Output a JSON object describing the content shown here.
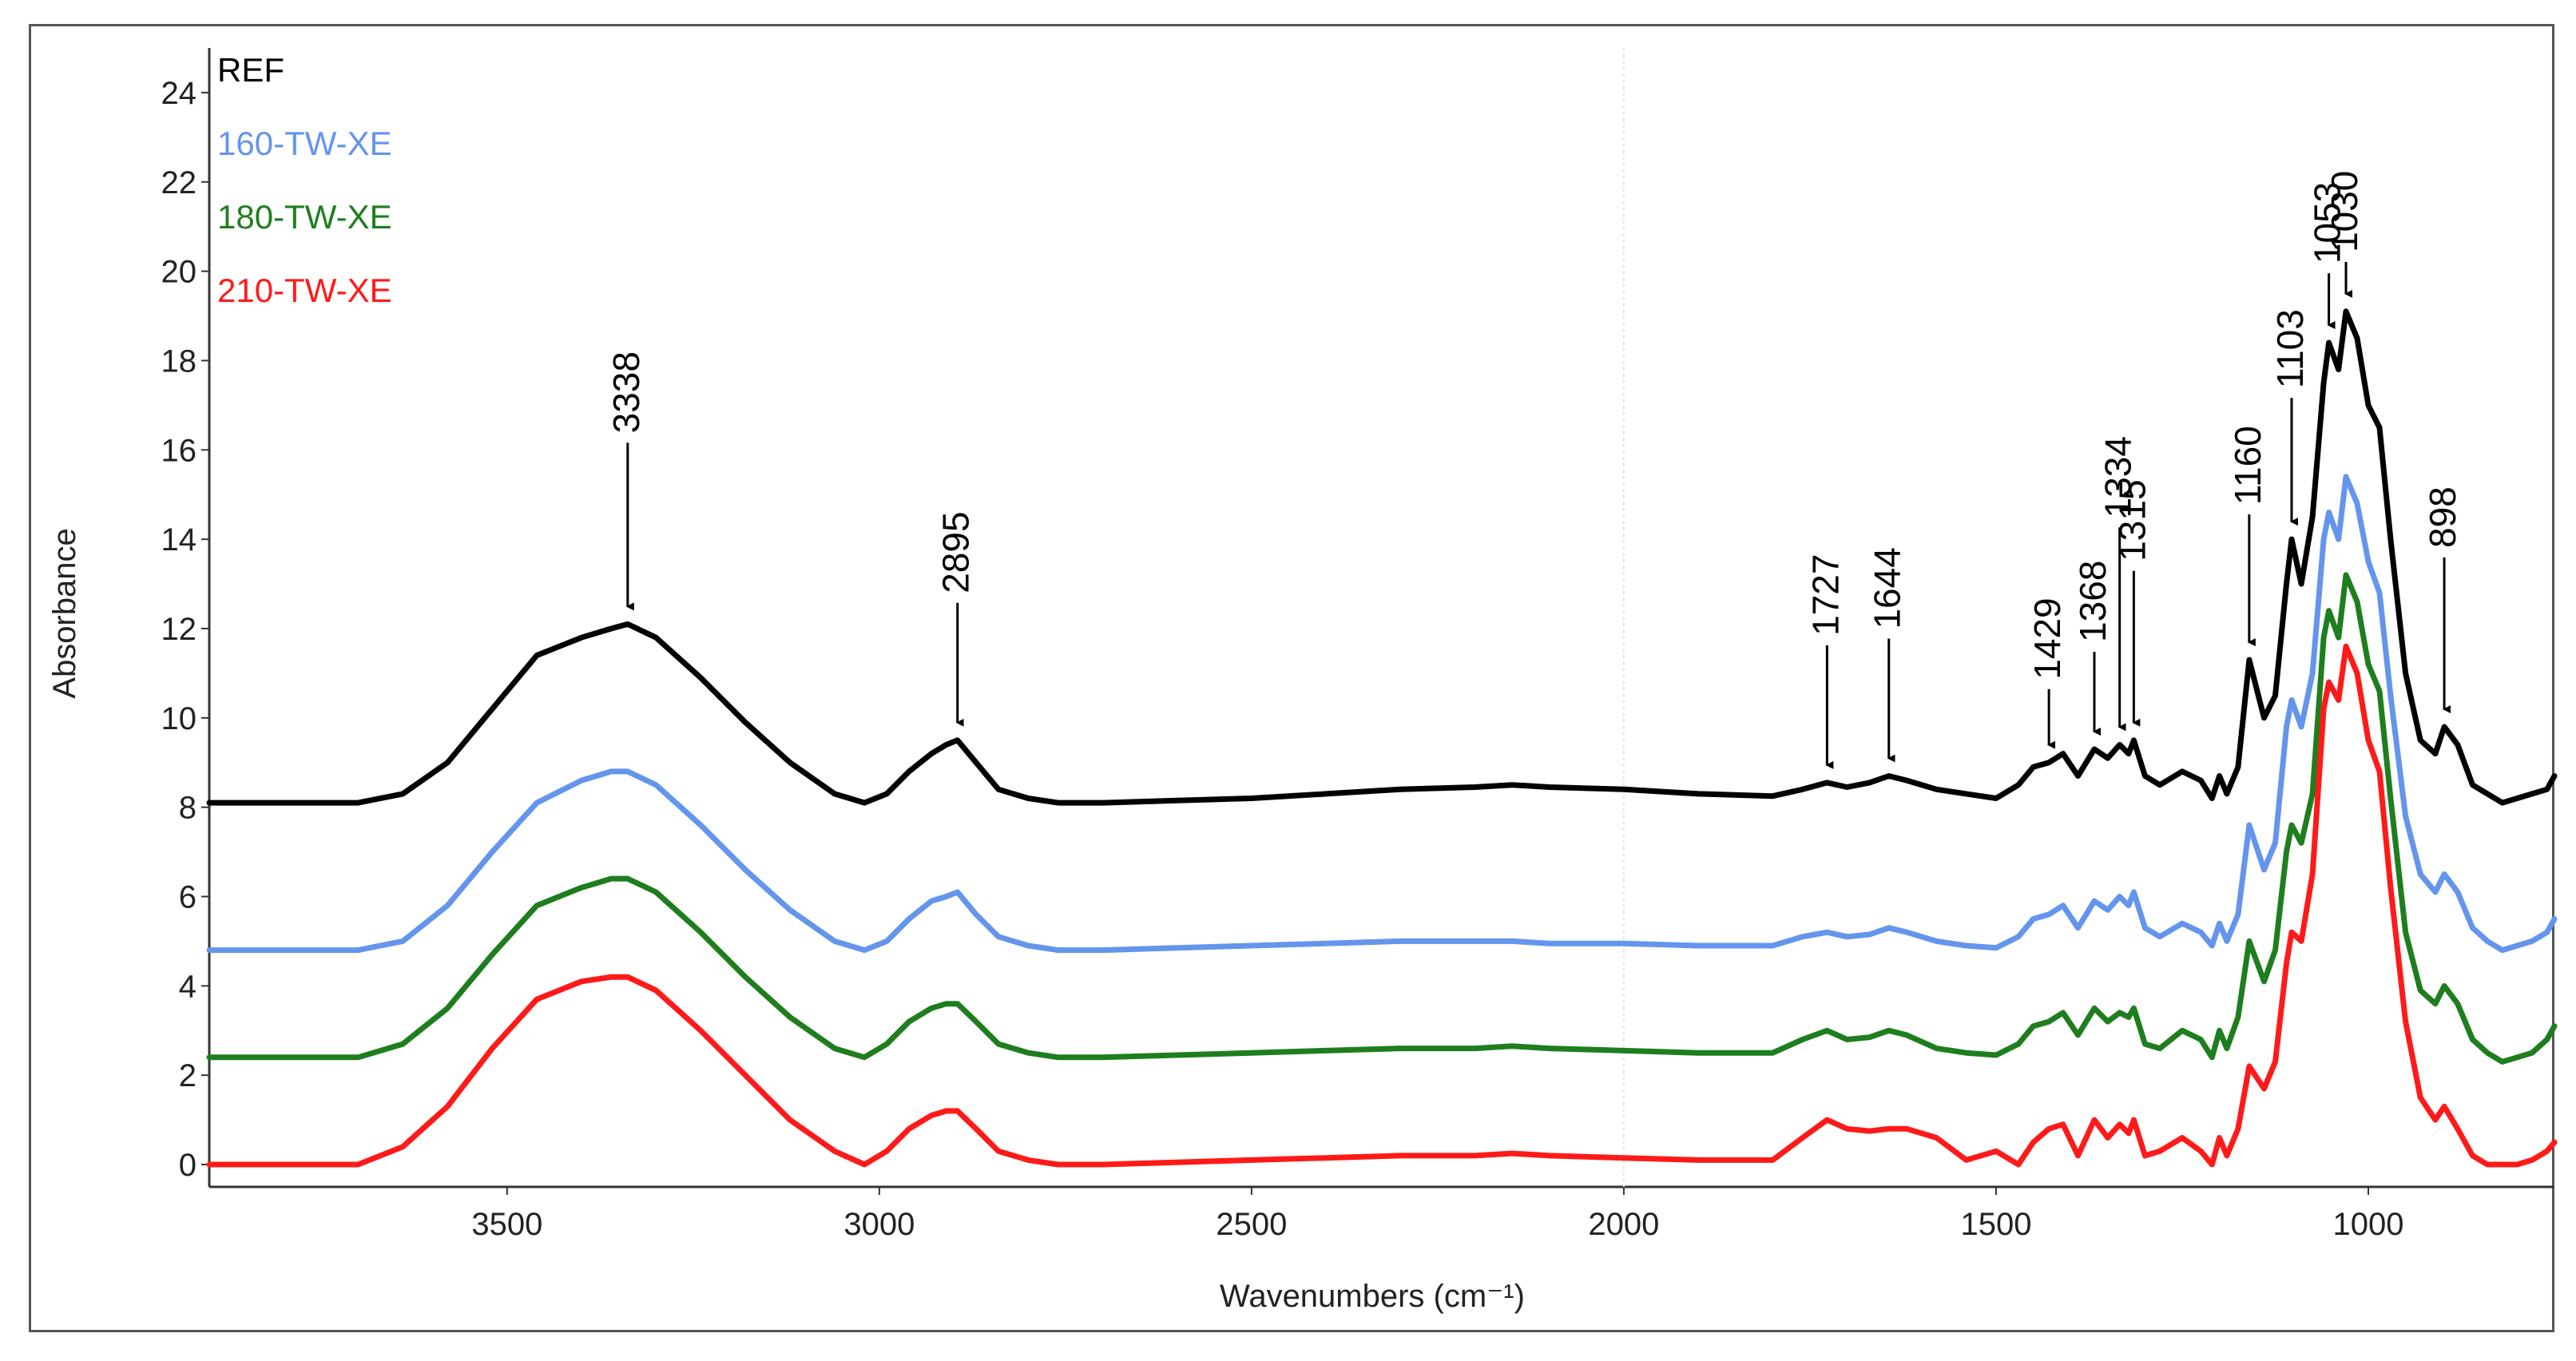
{
  "chart_data": {
    "type": "line",
    "title": "",
    "xlabel": "Wavenumbers (cm⁻¹)",
    "ylabel": "Absorbance",
    "xlim": [
      3900,
      750
    ],
    "ylim": [
      -0.5,
      25
    ],
    "x_reversed": true,
    "x_ticks": [
      3500,
      3000,
      2500,
      2000,
      1500,
      1000
    ],
    "y_ticks": [
      0,
      2,
      4,
      6,
      8,
      10,
      12,
      14,
      16,
      18,
      20,
      22,
      24
    ],
    "x_tick_labels": [
      "3500",
      "3000",
      "2500",
      "2000",
      "1500",
      "1000"
    ],
    "y_tick_labels": [
      "0",
      "2",
      "4",
      "6",
      "8",
      "10",
      "12",
      "14",
      "16",
      "18",
      "20",
      "22",
      "24"
    ],
    "grid": false,
    "legend_position": "top-left",
    "legend": [
      "REF",
      "160-TW-XE",
      "180-TW-XE",
      "210-TW-XE"
    ],
    "series": [
      {
        "name": "REF",
        "color": "#000000",
        "x": [
          3900,
          3700,
          3640,
          3580,
          3520,
          3460,
          3400,
          3360,
          3338,
          3300,
          3240,
          3180,
          3120,
          3060,
          3020,
          2990,
          2960,
          2930,
          2910,
          2895,
          2870,
          2840,
          2800,
          2760,
          2700,
          2600,
          2500,
          2400,
          2300,
          2200,
          2150,
          2100,
          2000,
          1900,
          1800,
          1760,
          1727,
          1700,
          1670,
          1644,
          1620,
          1580,
          1540,
          1500,
          1470,
          1450,
          1429,
          1410,
          1390,
          1368,
          1350,
          1334,
          1322,
          1315,
          1300,
          1280,
          1250,
          1225,
          1210,
          1200,
          1190,
          1175,
          1160,
          1140,
          1125,
          1110,
          1103,
          1090,
          1075,
          1060,
          1053,
          1040,
          1030,
          1015,
          1000,
          985,
          970,
          950,
          930,
          910,
          898,
          880,
          860,
          840,
          820,
          800,
          780,
          760,
          750
        ],
        "y": [
          8.1,
          8.1,
          8.3,
          9.0,
          10.2,
          11.4,
          11.8,
          12.0,
          12.1,
          11.8,
          10.9,
          9.9,
          9.0,
          8.3,
          8.1,
          8.3,
          8.8,
          9.2,
          9.4,
          9.5,
          9.0,
          8.4,
          8.2,
          8.1,
          8.1,
          8.15,
          8.2,
          8.3,
          8.4,
          8.45,
          8.5,
          8.45,
          8.4,
          8.3,
          8.25,
          8.4,
          8.55,
          8.45,
          8.55,
          8.7,
          8.6,
          8.4,
          8.3,
          8.2,
          8.5,
          8.9,
          9.0,
          9.2,
          8.7,
          9.3,
          9.1,
          9.4,
          9.2,
          9.5,
          8.7,
          8.5,
          8.8,
          8.6,
          8.2,
          8.7,
          8.3,
          8.9,
          11.3,
          10.0,
          10.5,
          13.0,
          14.0,
          13.0,
          14.5,
          17.5,
          18.4,
          17.8,
          19.1,
          18.5,
          17.0,
          16.5,
          14.0,
          11.0,
          9.5,
          9.2,
          9.8,
          9.4,
          8.5,
          8.3,
          8.1,
          8.2,
          8.3,
          8.4,
          8.7
        ]
      },
      {
        "name": "160-TW-XE",
        "color": "#6495ED",
        "x": [
          3900,
          3700,
          3640,
          3580,
          3520,
          3460,
          3400,
          3360,
          3338,
          3300,
          3240,
          3180,
          3120,
          3060,
          3020,
          2990,
          2960,
          2930,
          2910,
          2895,
          2870,
          2840,
          2800,
          2760,
          2700,
          2600,
          2500,
          2400,
          2300,
          2200,
          2150,
          2100,
          2000,
          1900,
          1800,
          1760,
          1727,
          1700,
          1670,
          1644,
          1620,
          1580,
          1540,
          1500,
          1470,
          1450,
          1429,
          1410,
          1390,
          1368,
          1350,
          1334,
          1322,
          1315,
          1300,
          1280,
          1250,
          1225,
          1210,
          1200,
          1190,
          1175,
          1160,
          1140,
          1125,
          1110,
          1103,
          1090,
          1075,
          1060,
          1053,
          1040,
          1030,
          1015,
          1000,
          985,
          970,
          950,
          930,
          910,
          898,
          880,
          860,
          840,
          820,
          800,
          780,
          760,
          750
        ],
        "y": [
          4.8,
          4.8,
          5.0,
          5.8,
          7.0,
          8.1,
          8.6,
          8.8,
          8.8,
          8.5,
          7.6,
          6.6,
          5.7,
          5.0,
          4.8,
          5.0,
          5.5,
          5.9,
          6.0,
          6.1,
          5.6,
          5.1,
          4.9,
          4.8,
          4.8,
          4.85,
          4.9,
          4.95,
          5.0,
          5.0,
          5.0,
          4.95,
          4.95,
          4.9,
          4.9,
          5.1,
          5.2,
          5.1,
          5.15,
          5.3,
          5.2,
          5.0,
          4.9,
          4.85,
          5.1,
          5.5,
          5.6,
          5.8,
          5.3,
          5.9,
          5.7,
          6.0,
          5.8,
          6.1,
          5.3,
          5.1,
          5.4,
          5.2,
          4.9,
          5.4,
          5.0,
          5.6,
          7.6,
          6.6,
          7.2,
          9.8,
          10.4,
          9.8,
          11.0,
          14.0,
          14.6,
          14.0,
          15.4,
          14.8,
          13.5,
          12.8,
          10.5,
          7.8,
          6.5,
          6.1,
          6.5,
          6.1,
          5.3,
          5.0,
          4.8,
          4.9,
          5.0,
          5.2,
          5.5
        ]
      },
      {
        "name": "180-TW-XE",
        "color": "#1E7E1E",
        "x": [
          3900,
          3700,
          3640,
          3580,
          3520,
          3460,
          3400,
          3360,
          3338,
          3300,
          3240,
          3180,
          3120,
          3060,
          3020,
          2990,
          2960,
          2930,
          2910,
          2895,
          2870,
          2840,
          2800,
          2760,
          2700,
          2600,
          2500,
          2400,
          2300,
          2200,
          2150,
          2100,
          2000,
          1900,
          1800,
          1760,
          1727,
          1700,
          1670,
          1644,
          1620,
          1580,
          1540,
          1500,
          1470,
          1450,
          1429,
          1410,
          1390,
          1368,
          1350,
          1334,
          1322,
          1315,
          1300,
          1280,
          1250,
          1225,
          1210,
          1200,
          1190,
          1175,
          1160,
          1140,
          1125,
          1110,
          1103,
          1090,
          1075,
          1060,
          1053,
          1040,
          1030,
          1015,
          1000,
          985,
          970,
          950,
          930,
          910,
          898,
          880,
          860,
          840,
          820,
          800,
          780,
          760,
          750
        ],
        "y": [
          2.4,
          2.4,
          2.7,
          3.5,
          4.7,
          5.8,
          6.2,
          6.4,
          6.4,
          6.1,
          5.2,
          4.2,
          3.3,
          2.6,
          2.4,
          2.7,
          3.2,
          3.5,
          3.6,
          3.6,
          3.2,
          2.7,
          2.5,
          2.4,
          2.4,
          2.45,
          2.5,
          2.55,
          2.6,
          2.6,
          2.65,
          2.6,
          2.55,
          2.5,
          2.5,
          2.8,
          3.0,
          2.8,
          2.85,
          3.0,
          2.9,
          2.6,
          2.5,
          2.45,
          2.7,
          3.1,
          3.2,
          3.4,
          2.9,
          3.5,
          3.2,
          3.4,
          3.3,
          3.5,
          2.7,
          2.6,
          3.0,
          2.8,
          2.4,
          3.0,
          2.6,
          3.3,
          5.0,
          4.1,
          4.8,
          7.0,
          7.6,
          7.2,
          8.3,
          11.8,
          12.4,
          11.8,
          13.2,
          12.6,
          11.2,
          10.6,
          8.2,
          5.2,
          3.9,
          3.6,
          4.0,
          3.6,
          2.8,
          2.5,
          2.3,
          2.4,
          2.5,
          2.8,
          3.1
        ]
      },
      {
        "name": "210-TW-XE",
        "color": "#FF1A1A",
        "x": [
          3900,
          3700,
          3640,
          3580,
          3520,
          3460,
          3400,
          3360,
          3338,
          3300,
          3240,
          3180,
          3120,
          3060,
          3020,
          2990,
          2960,
          2930,
          2910,
          2895,
          2870,
          2840,
          2800,
          2760,
          2700,
          2600,
          2500,
          2400,
          2300,
          2200,
          2150,
          2100,
          2000,
          1900,
          1800,
          1760,
          1727,
          1700,
          1670,
          1644,
          1620,
          1580,
          1540,
          1500,
          1470,
          1450,
          1429,
          1410,
          1390,
          1368,
          1350,
          1334,
          1322,
          1315,
          1300,
          1280,
          1250,
          1225,
          1210,
          1200,
          1190,
          1175,
          1160,
          1140,
          1125,
          1110,
          1103,
          1090,
          1075,
          1060,
          1053,
          1040,
          1030,
          1015,
          1000,
          985,
          970,
          950,
          930,
          910,
          898,
          880,
          860,
          840,
          820,
          800,
          780,
          760,
          750
        ],
        "y": [
          0.0,
          0.0,
          0.4,
          1.3,
          2.6,
          3.7,
          4.1,
          4.2,
          4.2,
          3.9,
          3.0,
          2.0,
          1.0,
          0.3,
          0.0,
          0.3,
          0.8,
          1.1,
          1.2,
          1.2,
          0.8,
          0.3,
          0.1,
          0.0,
          0.0,
          0.05,
          0.1,
          0.15,
          0.2,
          0.2,
          0.25,
          0.2,
          0.15,
          0.1,
          0.1,
          0.6,
          1.0,
          0.8,
          0.75,
          0.8,
          0.8,
          0.6,
          0.1,
          0.3,
          0.0,
          0.5,
          0.8,
          0.9,
          0.2,
          1.0,
          0.6,
          0.9,
          0.7,
          1.0,
          0.2,
          0.3,
          0.6,
          0.3,
          0.0,
          0.6,
          0.2,
          0.8,
          2.2,
          1.7,
          2.3,
          4.5,
          5.2,
          5.0,
          6.5,
          10.2,
          10.8,
          10.4,
          11.6,
          11.0,
          9.5,
          8.8,
          6.2,
          3.2,
          1.5,
          1.0,
          1.3,
          0.8,
          0.2,
          0.0,
          0.0,
          0.0,
          0.1,
          0.3,
          0.5
        ]
      }
    ],
    "annotations": [
      {
        "label": "3338",
        "x": 3338,
        "y": 12.1,
        "series": "REF"
      },
      {
        "label": "2895",
        "x": 2895,
        "y": 9.5,
        "series": "REF"
      },
      {
        "label": "1727",
        "x": 1727,
        "y": 8.55,
        "series": "REF"
      },
      {
        "label": "1644",
        "x": 1644,
        "y": 8.7,
        "series": "REF"
      },
      {
        "label": "1429",
        "x": 1429,
        "y": 9.0,
        "series": "REF"
      },
      {
        "label": "1368",
        "x": 1368,
        "y": 9.3,
        "series": "REF"
      },
      {
        "label": "1334",
        "x": 1334,
        "y": 9.4,
        "series": "REF"
      },
      {
        "label": "1315",
        "x": 1315,
        "y": 9.5,
        "series": "REF"
      },
      {
        "label": "1160",
        "x": 1160,
        "y": 11.3,
        "series": "REF"
      },
      {
        "label": "1103",
        "x": 1103,
        "y": 14.0,
        "series": "REF"
      },
      {
        "label": "1053",
        "x": 1053,
        "y": 18.4,
        "series": "REF"
      },
      {
        "label": "1030",
        "x": 1030,
        "y": 19.1,
        "series": "REF"
      },
      {
        "label": "898",
        "x": 898,
        "y": 9.8,
        "series": "REF"
      }
    ]
  }
}
